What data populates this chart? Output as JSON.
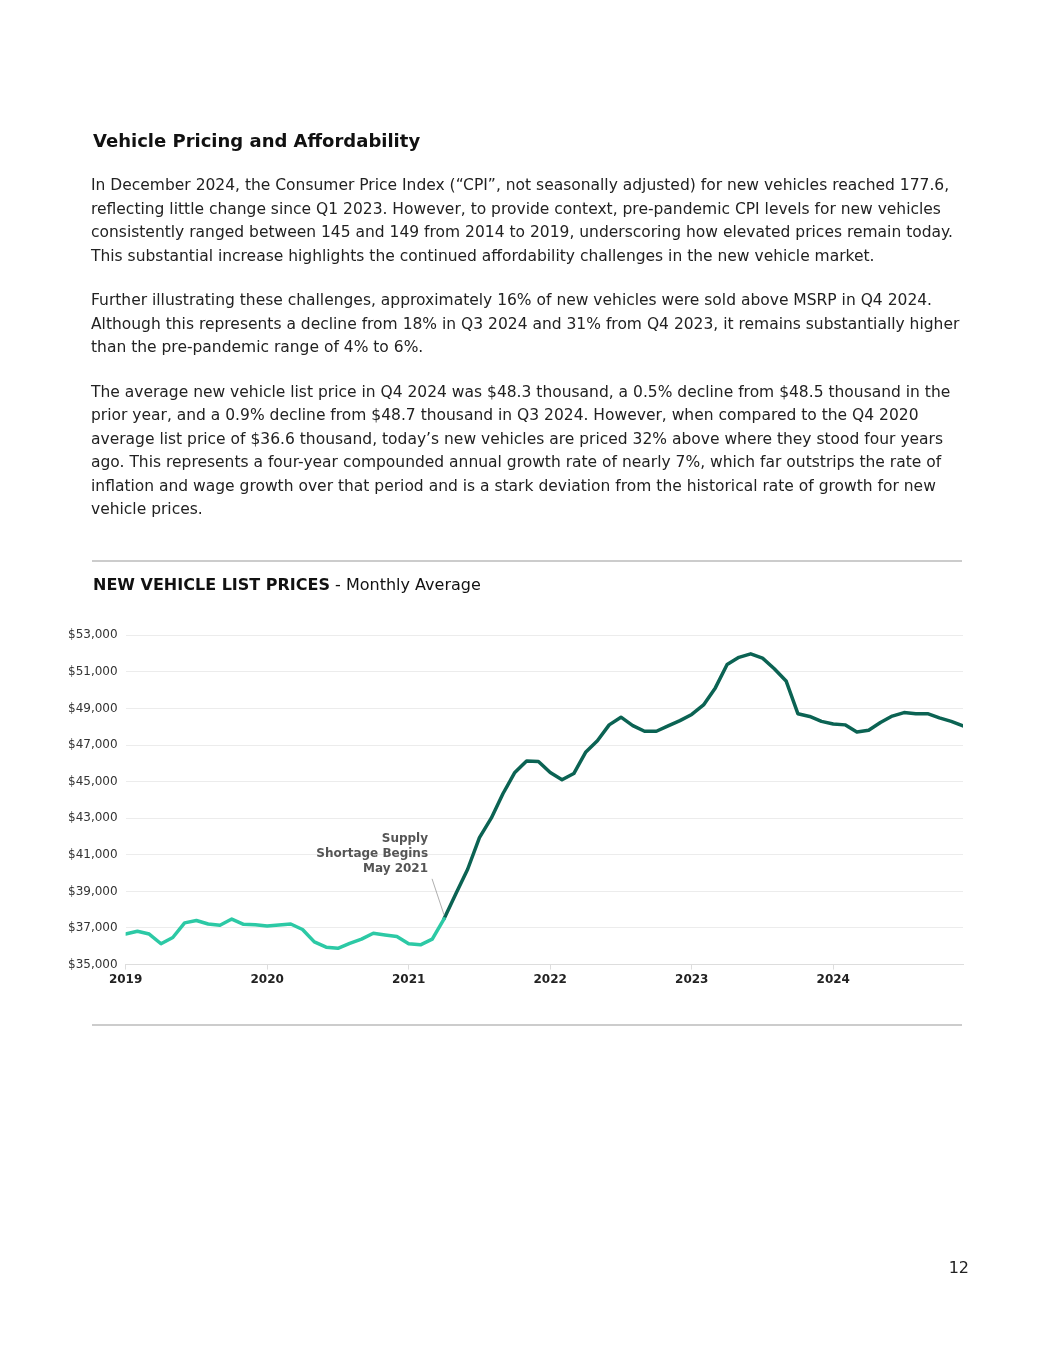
{
  "chart_data": {
    "type": "line",
    "title": "NEW VEHICLE LIST PRICES",
    "subtitle": "- Monthly Average",
    "annotations": [
      "Vehicle Pricing and Affordability",
      "In December 2024, the Consumer Price Index (“CPI”, not seasonally adjusted) for new vehicles reached 177.6, reflecting little change since Q1 2023. However, to provide context, pre-pandemic CPI levels for new vehicles consistently ranged between 145 and 149 from 2014 to 2019, underscoring how elevated prices remain today. This substantial increase highlights the continued affordability challenges in the new vehicle market.",
      "Further illustrating these challenges, approximately 16% of new vehicles were sold above MSRP in Q4 2024. Although this represents a decline from 18% in Q3 2024 and 31% from Q4 2023, it remains substantially higher than the pre-pandemic range of 4% to 6%.",
      "The average new vehicle list price in Q4 2024 was $48.3 thousand, a 0.5% decline from $48.5 thousand in the prior year, and a 0.9% decline from $48.7 thousand in Q3 2024. However, when compared to the Q4 2020 average list price of $36.6 thousand, today’s new vehicles are priced 32% above where they stood four years ago. This represents a four-year compounded annual growth rate of nearly 7%, which far outstrips the rate of inflation and wage growth over that period and is a stark deviation from the historical rate of growth for new vehicle prices.",
      {
        "text": "Supply Shortage Begins May 2021",
        "x": "2021-04",
        "y": 37500
      },
      "12"
    ],
    "x": [
      "2019-01",
      "2019-02",
      "2019-03",
      "2019-04",
      "2019-05",
      "2019-06",
      "2019-07",
      "2019-08",
      "2019-09",
      "2019-10",
      "2019-11",
      "2019-12",
      "2020-01",
      "2020-02",
      "2020-03",
      "2020-04",
      "2020-05",
      "2020-06",
      "2020-07",
      "2020-08",
      "2020-09",
      "2020-10",
      "2020-11",
      "2020-12",
      "2021-01",
      "2021-02",
      "2021-03",
      "2021-04",
      "2021-05",
      "2021-06",
      "2021-07",
      "2021-08",
      "2021-09",
      "2021-10",
      "2021-11",
      "2021-12",
      "2022-01",
      "2022-02",
      "2022-03",
      "2022-04",
      "2022-05",
      "2022-06",
      "2022-07",
      "2022-08",
      "2022-09",
      "2022-10",
      "2022-11",
      "2022-12",
      "2023-01",
      "2023-02",
      "2023-03",
      "2023-04",
      "2023-05",
      "2023-06",
      "2023-07",
      "2023-08",
      "2023-09",
      "2023-10",
      "2023-11",
      "2023-12",
      "2024-01",
      "2024-02",
      "2024-03",
      "2024-04",
      "2024-05",
      "2024-06",
      "2024-07",
      "2024-08",
      "2024-09",
      "2024-10",
      "2024-11",
      "2024-12"
    ],
    "series": [
      {
        "color": "#2cc9a5",
        "values": [
          36670,
          36820,
          36670,
          36140,
          36480,
          37280,
          37410,
          37220,
          37150,
          37490,
          37200,
          37180,
          37110,
          37170,
          37220,
          36920,
          36240,
          35950,
          35890,
          36160,
          36390,
          36710,
          36620,
          36540,
          36140,
          36080,
          36390,
          37500,
          null,
          null,
          null,
          null,
          null,
          null,
          null,
          null,
          null,
          null,
          null,
          null,
          null,
          null,
          null,
          null,
          null,
          null,
          null,
          null,
          null,
          null,
          null,
          null,
          null,
          null,
          null,
          null,
          null,
          null,
          null,
          null,
          null,
          null,
          null,
          null,
          null,
          null,
          null,
          null,
          null,
          null,
          null,
          null
        ]
      },
      {
        "color": "#0b6353",
        "values": [
          null,
          null,
          null,
          null,
          null,
          null,
          null,
          null,
          null,
          null,
          null,
          null,
          null,
          null,
          null,
          null,
          null,
          null,
          null,
          null,
          null,
          null,
          null,
          null,
          null,
          null,
          null,
          37500,
          38870,
          40210,
          41940,
          43000,
          44350,
          45500,
          46130,
          46100,
          45500,
          45100,
          45440,
          46600,
          47230,
          48100,
          48520,
          48060,
          47750,
          47750,
          48040,
          48330,
          48670,
          49190,
          50120,
          51400,
          51790,
          51980,
          51750,
          51170,
          50500,
          48710,
          48560,
          48290,
          48150,
          48100,
          47710,
          47810,
          48230,
          48580,
          48770,
          48710,
          48710,
          48480,
          48290,
          48040
        ]
      }
    ],
    "xlim": [
      "2019-01",
      "2024-12"
    ],
    "xticks": [
      {
        "value": "2019-01",
        "label": "2019"
      },
      {
        "value": "2020-01",
        "label": "2020"
      },
      {
        "value": "2021-01",
        "label": "2021"
      },
      {
        "value": "2022-01",
        "label": "2022"
      },
      {
        "value": "2023-01",
        "label": "2023"
      },
      {
        "value": "2024-01",
        "label": "2024"
      }
    ],
    "ylim": [
      35000,
      53000
    ],
    "yticks": [
      {
        "value": 35000,
        "label": "$35,000"
      },
      {
        "value": 37000,
        "label": "$37,000"
      },
      {
        "value": 39000,
        "label": "$39,000"
      },
      {
        "value": 41000,
        "label": "$41,000"
      },
      {
        "value": 43000,
        "label": "$43,000"
      },
      {
        "value": 45000,
        "label": "$45,000"
      },
      {
        "value": 47000,
        "label": "$47,000"
      },
      {
        "value": 49000,
        "label": "$49,000"
      },
      {
        "value": 51000,
        "label": "$51,000"
      },
      {
        "value": 53000,
        "label": "$53,000"
      }
    ],
    "grid": "y",
    "legend": false,
    "marker": "none",
    "line_style": "solid"
  }
}
